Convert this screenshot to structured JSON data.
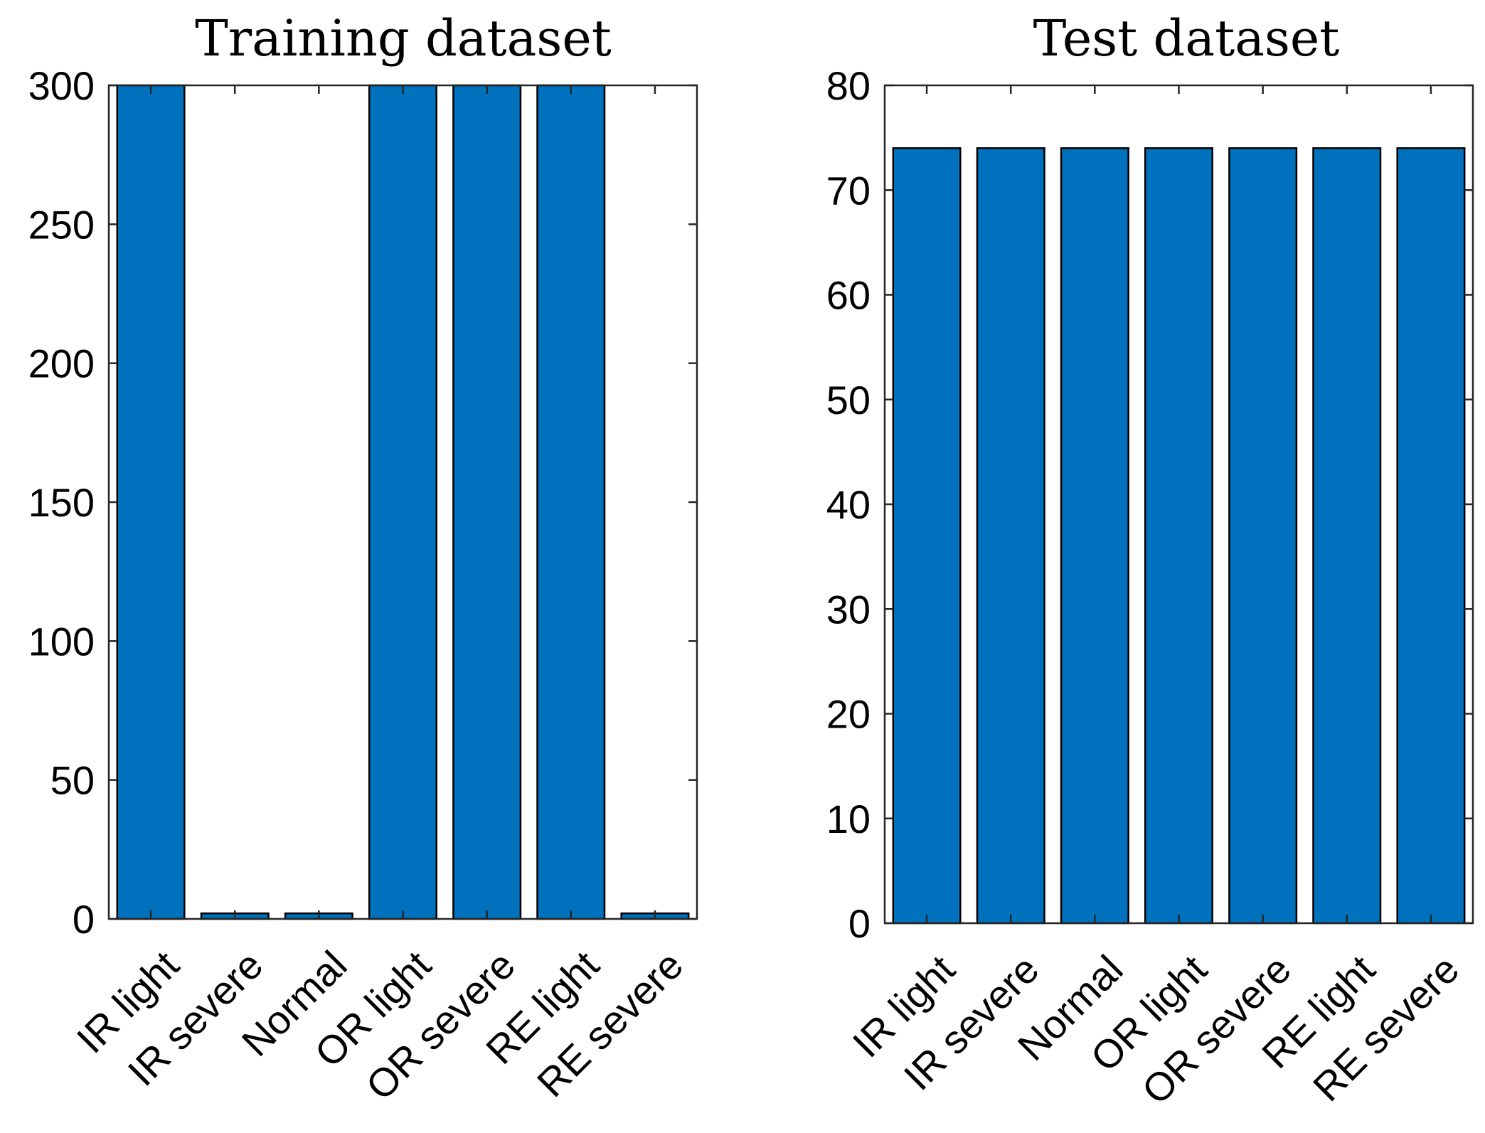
{
  "chart_data": [
    {
      "type": "bar",
      "title": "Training dataset",
      "categories": [
        "IR light",
        "IR severe",
        "Normal",
        "OR light",
        "OR severe",
        "RE light",
        "RE severe"
      ],
      "values": [
        300,
        2,
        2,
        300,
        300,
        300,
        2
      ],
      "ylim": [
        0,
        300
      ],
      "yticks": [
        0,
        50,
        100,
        150,
        200,
        250,
        300
      ],
      "xlabel": "",
      "ylabel": "",
      "bar_color": "#0072BD",
      "grid": false
    },
    {
      "type": "bar",
      "title": "Test dataset",
      "categories": [
        "IR light",
        "IR severe",
        "Normal",
        "OR light",
        "OR severe",
        "RE light",
        "RE severe"
      ],
      "values": [
        74,
        74,
        74,
        74,
        74,
        74,
        74
      ],
      "ylim": [
        0,
        80
      ],
      "yticks": [
        0,
        10,
        20,
        30,
        40,
        50,
        60,
        70,
        80
      ],
      "xlabel": "",
      "ylabel": "",
      "bar_color": "#0072BD",
      "grid": false
    }
  ]
}
